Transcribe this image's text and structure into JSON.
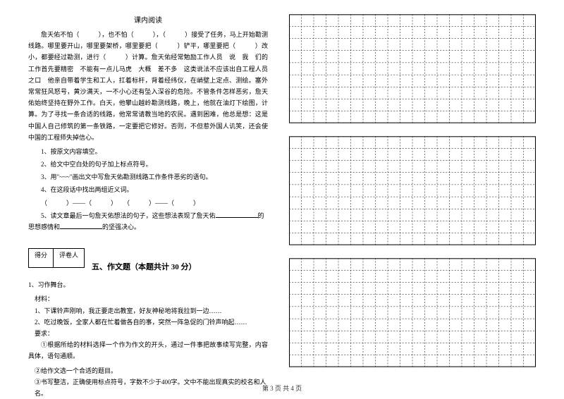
{
  "reading": {
    "title": "课内阅读",
    "body": "詹天佑不怕（　　　），也不怕（　　　），（　　　）接受了任务，马上开始勘测线路。哪里要开山，哪里要架桥，哪里要把（　　　）铲平，哪里要把（　　　）改小，都要经过勘测，进行（　　　）计算。詹天佑经常勉励工作人员　说　我　们的工作首先要精密　不能有一点儿马虎　大概　差不多　这类说法不应该出自工程人员之口　他亲自带着学生和工人，扛着标杆，背着经纬仪，在峭壁上定点、测绘。塞外常常狂风怒号，黄沙满天，一不小心还有坠入深谷的危险。不管条件怎样恶劣，詹天佑始终坚持在野外工作。白天，他攀山越岭勘测线路，晚上，他就在油灯下绘图，计算。为了寻找一条合适的线路，他常常请教当地的农民。遇到困难，他总是想：这是中国人自己修筑的第一条铁路，一定要把它修好。否则，不但惹外国人讥笑，还会使中国的工程师失掉信心。",
    "q1": "1、按原文内容填空。",
    "q2": "2、给文中空白处的句子加上标点符号。",
    "q3": "3、用\"~~~\"画出文中写詹天佑勘测线路工作条件恶劣的语句。",
    "q4": "4、在这段话中找出两组近义词。",
    "q4_blank": "（　　　）——（　　　）　　（　　　）——（　　　）",
    "q5_part1": "5、读文章最后一句詹天佑想法的句子，这些想法表现了詹天佑",
    "q5_part2": "的思想感情和",
    "q5_part3": "的坚强决心。"
  },
  "composition": {
    "score_label1": "得分",
    "score_label2": "评卷人",
    "section_title": "五、作文题（本题共计 30 分）",
    "item1": "1、习作舞台。",
    "material_label": "材料：",
    "material1": "1、下课铃声刚响，我正要走出教室，好友神秘地将我拉到一边……",
    "material2": "2、吃过晚饭，全家人都在忙着做各自的事，突然一阵急促的门铃声响起……",
    "req_label": "要求：",
    "req1": "①根据所给的材料选择一个作为作文的开头，通过一件事把故事续写完整，内容具体，语句通顺。",
    "req2": "②给作文选一个合适的题目。",
    "req3": "③书写整洁，正确使用标点符号，字数不少于400字。文中不能出现真实的校名和人名。"
  },
  "grid": {
    "cols": 20,
    "rows": 9,
    "border_color": "#000000",
    "dash": "2,2"
  },
  "footer": "第 3 页 共 4 页"
}
